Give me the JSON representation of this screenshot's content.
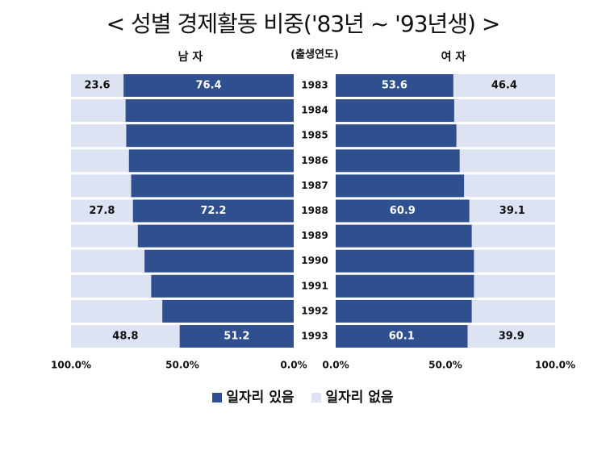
{
  "chart_data": {
    "type": "bar",
    "title": "< 성별 경제활동 비중('83년 ~ '93년생) >",
    "center_label": "(출생연도)",
    "categories": [
      "1983",
      "1984",
      "1985",
      "1986",
      "1987",
      "1988",
      "1989",
      "1990",
      "1991",
      "1992",
      "1993"
    ],
    "panels": [
      {
        "name": "남 자",
        "direction": "left",
        "series": [
          {
            "name": "일자리 있음",
            "color": "#2f4f8f",
            "values": [
              76.4,
              75.5,
              75.2,
              74.0,
              73.0,
              72.2,
              70.0,
              67.0,
              64.0,
              59.0,
              51.2
            ],
            "labels": {
              "0": "76.4",
              "5": "72.2",
              "10": "51.2"
            }
          },
          {
            "name": "일자리 없음",
            "color": "#dde3f2",
            "values": [
              23.6,
              24.5,
              24.8,
              26.0,
              27.0,
              27.8,
              30.0,
              33.0,
              36.0,
              41.0,
              48.8
            ],
            "labels": {
              "0": "23.6",
              "5": "27.8",
              "10": "48.8"
            }
          }
        ],
        "axis_ticks": [
          "100.0%",
          "50.0%",
          "0.0%"
        ]
      },
      {
        "name": "여 자",
        "direction": "right",
        "series": [
          {
            "name": "일자리 있음",
            "color": "#2f4f8f",
            "values": [
              53.6,
              54.0,
              55.0,
              56.5,
              58.5,
              60.9,
              62.0,
              63.0,
              63.0,
              62.0,
              60.1
            ],
            "labels": {
              "0": "53.6",
              "5": "60.9",
              "10": "60.1"
            }
          },
          {
            "name": "일자리 없음",
            "color": "#dde3f2",
            "values": [
              46.4,
              46.0,
              45.0,
              43.5,
              41.5,
              39.1,
              38.0,
              37.0,
              37.0,
              38.0,
              39.9
            ],
            "labels": {
              "0": "46.4",
              "5": "39.1",
              "10": "39.9"
            }
          }
        ],
        "axis_ticks": [
          "0.0%",
          "50.0%",
          "100.0%"
        ]
      }
    ],
    "xlim": [
      0,
      100
    ],
    "legend": {
      "position": "bottom",
      "entries": [
        "일자리 있음",
        "일자리 없음"
      ]
    }
  }
}
